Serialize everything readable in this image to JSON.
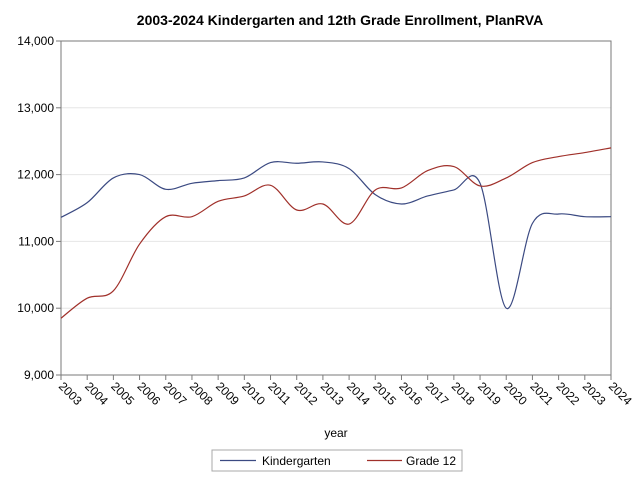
{
  "chart_data": {
    "type": "line",
    "title": "2003-2024 Kindergarten and 12th Grade Enrollment, PlanRVA",
    "xlabel": "year",
    "ylabel": "",
    "x": [
      2003,
      2004,
      2005,
      2006,
      2007,
      2008,
      2009,
      2010,
      2011,
      2012,
      2013,
      2014,
      2015,
      2016,
      2017,
      2018,
      2019,
      2020,
      2021,
      2022,
      2023,
      2024
    ],
    "x_tick_labels": [
      "2003",
      "2004",
      "2005",
      "2006",
      "2007",
      "2008",
      "2009",
      "2010",
      "2011",
      "2012",
      "2013",
      "2014",
      "2015",
      "2016",
      "2017",
      "2018",
      "2019",
      "2020",
      "2021",
      "2022",
      "2023",
      "2024"
    ],
    "ylim": [
      9000,
      14000
    ],
    "y_ticks": [
      9000,
      10000,
      11000,
      12000,
      13000,
      14000
    ],
    "y_tick_labels": [
      "9,000",
      "10,000",
      "11,000",
      "12,000",
      "13,000",
      "14,000"
    ],
    "grid": true,
    "legend_position": "bottom",
    "series": [
      {
        "name": "Kindergarten",
        "color": "#3b4a82",
        "values": [
          11360,
          11580,
          11950,
          12000,
          11780,
          11870,
          11910,
          11950,
          12180,
          12170,
          12190,
          12090,
          11700,
          11560,
          11680,
          11770,
          11870,
          10000,
          11270,
          11410,
          11370,
          11370
        ]
      },
      {
        "name": "Grade 12",
        "color": "#a0302a",
        "values": [
          9850,
          10150,
          10260,
          10960,
          11370,
          11370,
          11600,
          11680,
          11840,
          11470,
          11560,
          11260,
          11770,
          11800,
          12060,
          12120,
          11830,
          11950,
          12180,
          12270,
          12330,
          12400
        ]
      }
    ]
  }
}
